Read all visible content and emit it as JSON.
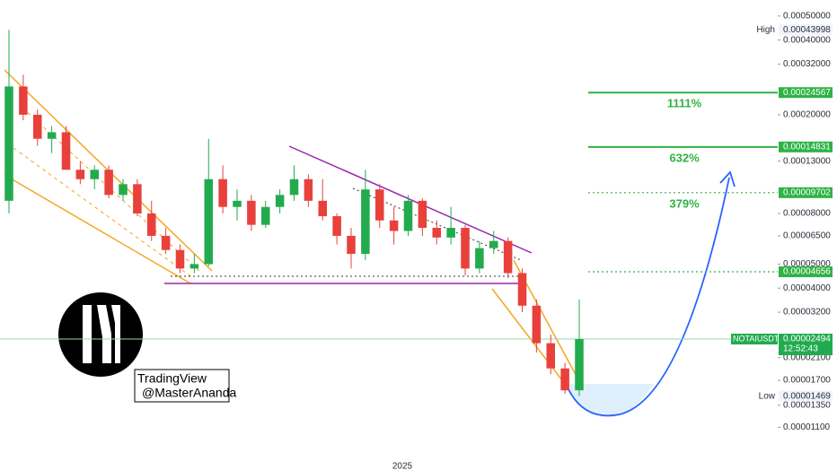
{
  "chart_data": {
    "type": "candlestick",
    "symbol": "NOTAIUSDT",
    "countdown": "12:52:43",
    "log_scale": true,
    "ylim": [
      7.4e-06,
      0.00058
    ],
    "yticks": [
      {
        "value": 0.0005,
        "label": "0.00050000"
      },
      {
        "value": 0.0004,
        "label": "0.00040000"
      },
      {
        "value": 0.00032,
        "label": "0.00032000"
      },
      {
        "value": 0.0002,
        "label": "0.00020000"
      },
      {
        "value": 0.00013,
        "label": "0.00013000"
      },
      {
        "value": 8e-05,
        "label": "0.00008000"
      },
      {
        "value": 6.5e-05,
        "label": "0.00006500"
      },
      {
        "value": 5e-05,
        "label": "0.00005000"
      },
      {
        "value": 4e-05,
        "label": "0.00004000"
      },
      {
        "value": 3.2e-05,
        "label": "0.00003200"
      },
      {
        "value": 2.1e-05,
        "label": "0.00002100"
      },
      {
        "value": 1.7e-05,
        "label": "0.00001700"
      },
      {
        "value": 1.35e-05,
        "label": "0.00001350"
      },
      {
        "value": 1.1e-05,
        "label": "0.00001100"
      }
    ],
    "up_color": "#22ab4e",
    "down_color": "#e8413c",
    "open": [
      9e-05,
      0.00026,
      0.0002,
      0.00016,
      0.00017,
      0.00012,
      0.00011,
      0.00012,
      9.5e-05,
      0.000105,
      8e-05,
      6.5e-05,
      5.7e-05,
      4.8e-05,
      5e-05,
      0.00011,
      8.5e-05,
      9e-05,
      7.2e-05,
      8.5e-05,
      9.5e-05,
      0.00011,
      9e-05,
      7.8e-05,
      6.5e-05,
      5.5e-05,
      0.0001,
      7.5e-05,
      6.8e-05,
      9e-05,
      7e-05,
      6.4e-05,
      7e-05,
      4.8e-05,
      5.8e-05,
      6.2e-05,
      4.6e-05,
      3.4e-05,
      2.4e-05,
      1.9e-05,
      1.55e-05
    ],
    "high": [
      0.00044,
      0.00029,
      0.00021,
      0.00018,
      0.00018,
      0.00013,
      0.000125,
      0.000125,
      0.00011,
      0.00011,
      9e-05,
      7e-05,
      6e-05,
      5.5e-05,
      0.00016,
      0.000125,
      0.0001,
      9.5e-05,
      9e-05,
      0.0001,
      0.000125,
      0.000115,
      0.00011,
      8e-05,
      7e-05,
      0.00012,
      0.000105,
      8.5e-05,
      9.5e-05,
      9.2e-05,
      7.5e-05,
      8.5e-05,
      7.2e-05,
      6.2e-05,
      6.8e-05,
      6.4e-05,
      4.8e-05,
      3.6e-05,
      2.6e-05,
      2e-05,
      3.6e-05
    ],
    "low": [
      8e-05,
      0.00019,
      0.00015,
      0.00014,
      0.00012,
      0.000105,
      0.0001,
      9.2e-05,
      9e-05,
      7.8e-05,
      6.2e-05,
      5.5e-05,
      4.6e-05,
      4.6e-05,
      4.9e-05,
      8e-05,
      7.5e-05,
      6.8e-05,
      7e-05,
      8e-05,
      9e-05,
      8.5e-05,
      7.5e-05,
      6e-05,
      4.8e-05,
      5.2e-05,
      7e-05,
      6e-05,
      6.5e-05,
      6.5e-05,
      6e-05,
      6e-05,
      4.5e-05,
      4.6e-05,
      5.5e-05,
      4.4e-05,
      3.2e-05,
      2.2e-05,
      1.8e-05,
      1.5e-05,
      1.47e-05
    ],
    "close": [
      0.00026,
      0.0002,
      0.00016,
      0.00017,
      0.00012,
      0.00011,
      0.00012,
      9.5e-05,
      0.000105,
      8e-05,
      6.5e-05,
      5.7e-05,
      4.8e-05,
      5e-05,
      0.00011,
      8.5e-05,
      9e-05,
      7.2e-05,
      8.5e-05,
      9.5e-05,
      0.00011,
      9e-05,
      7.8e-05,
      6.5e-05,
      5.5e-05,
      0.0001,
      7.5e-05,
      6.8e-05,
      9e-05,
      7e-05,
      6.4e-05,
      7e-05,
      4.8e-05,
      5.8e-05,
      6.2e-05,
      4.6e-05,
      3.4e-05,
      2.4e-05,
      1.9e-05,
      1.55e-05,
      2.494e-05
    ],
    "levels": [
      {
        "value": 0.00024567,
        "label": "0.00024567",
        "style": "solid"
      },
      {
        "value": 0.00014831,
        "label": "0.00014831",
        "style": "solid"
      },
      {
        "value": 9.702e-05,
        "label": "0.00009702",
        "style": "dotted"
      },
      {
        "value": 4.656e-05,
        "label": "0.00004656",
        "style": "dotted"
      }
    ],
    "annotations": [
      "1111%",
      "632%",
      "379%"
    ],
    "level_color": "#2fb344",
    "high_marker": {
      "name": "High",
      "value": 0.00043998,
      "label": "0.00043998"
    },
    "low_marker": {
      "name": "Low",
      "value": 1.469e-05,
      "label": "0.00001469"
    },
    "last_price": {
      "value": 2.494e-05,
      "label": "0.00002494"
    }
  },
  "watermark": {
    "line1": "TradingView",
    "line2": "@MasterAnanda"
  },
  "x_label": "2025"
}
